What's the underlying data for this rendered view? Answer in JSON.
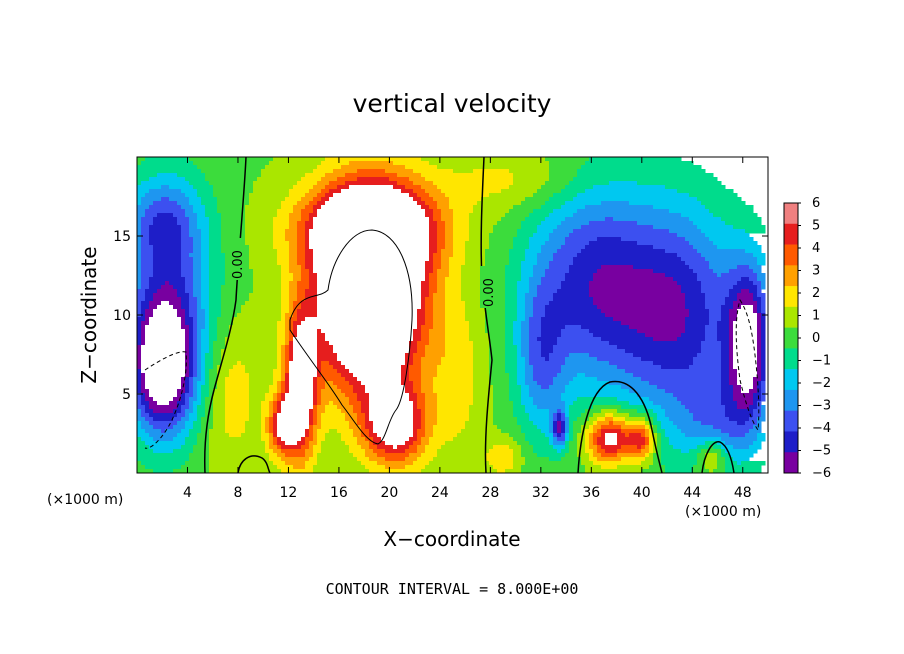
{
  "chart_data": {
    "type": "heatmap",
    "title": "vertical velocity",
    "xlabel": "X−coordinate",
    "ylabel": "Z−coordinate",
    "x_unit": "(×1000 m)",
    "y_unit": "(×1000 m)",
    "xlim": [
      0,
      50
    ],
    "ylim": [
      0,
      20
    ],
    "x_ticks": [
      "4",
      "8",
      "12",
      "16",
      "20",
      "24",
      "28",
      "32",
      "36",
      "40",
      "44",
      "48"
    ],
    "y_ticks": [
      "5",
      "10",
      "15"
    ],
    "colorbar": {
      "ticks": [
        "6",
        "5",
        "4",
        "3",
        "2",
        "1",
        "0",
        "−1",
        "−2",
        "−3",
        "−4",
        "−5",
        "−6"
      ],
      "range": [
        -6,
        6
      ]
    },
    "contour_labels": [
      "0.00",
      "0.00"
    ],
    "features": [
      {
        "kind": "updraft-core",
        "x": 18.5,
        "z": 10.5,
        "value": "> 6"
      },
      {
        "kind": "downdraft-core",
        "x": 2.5,
        "z": 7,
        "value": "< -6"
      },
      {
        "kind": "downdraft-core",
        "x": 48,
        "z": 7,
        "value": "< -6"
      },
      {
        "kind": "downdraft-region",
        "x": 42,
        "z": 10,
        "value": -5
      }
    ],
    "footnote": "CONTOUR INTERVAL = 8.000E+00"
  },
  "colors": {
    "scale": [
      "#7800a0",
      "#1e1ec8",
      "#3c50f0",
      "#1e96f0",
      "#00c8f0",
      "#00dc8c",
      "#3cdc3c",
      "#aae600",
      "#ffe600",
      "#ffa000",
      "#ff5a00",
      "#e61e1e",
      "#f08080"
    ],
    "saturated": "#ffffff",
    "contour": "#000000"
  }
}
